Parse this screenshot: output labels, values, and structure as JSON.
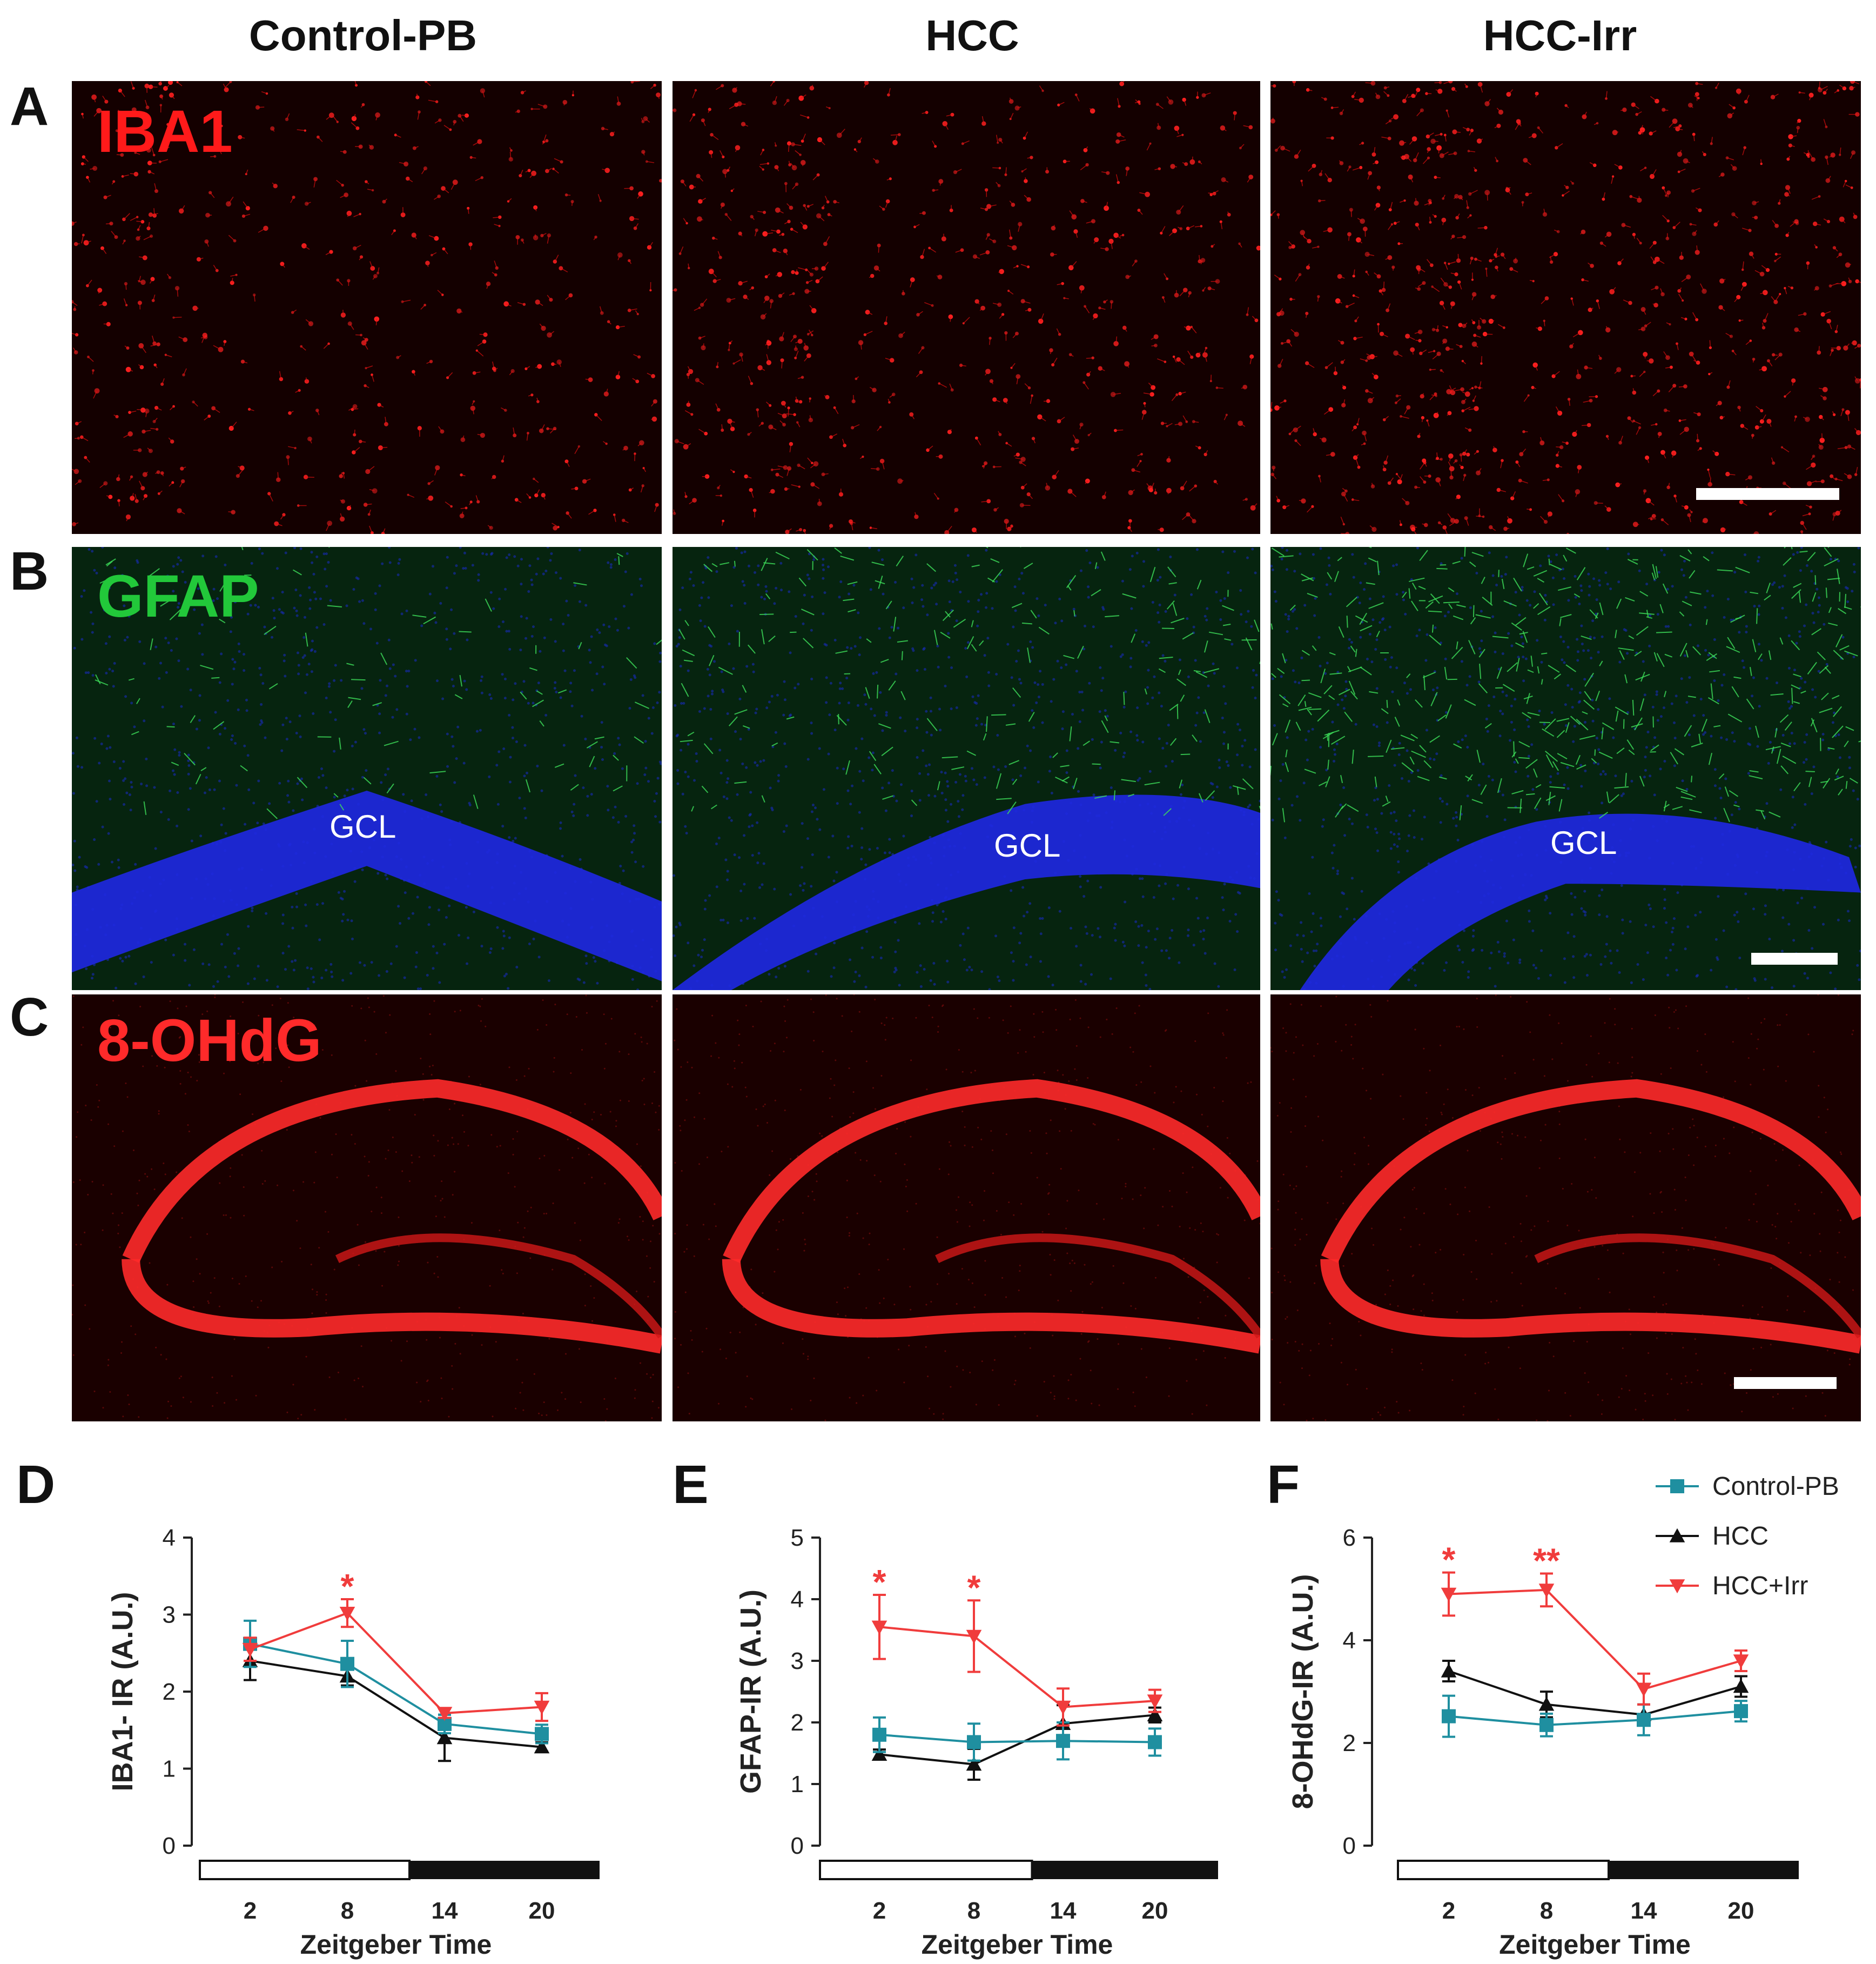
{
  "columns": [
    "Control-PB",
    "HCC",
    "HCC-Irr"
  ],
  "rows": [
    {
      "letter": "A",
      "stain": "IBA1",
      "stain_color": "#ff1a1a"
    },
    {
      "letter": "B",
      "stain": "GFAP",
      "stain_color": "#22c83a",
      "region_label": "GCL"
    },
    {
      "letter": "C",
      "stain": "8-OHdG",
      "stain_color": "#ff2a2a"
    }
  ],
  "legend": {
    "items": [
      {
        "label": "Control-PB",
        "color": "#1f8fa0",
        "marker": "square"
      },
      {
        "label": "HCC",
        "color": "#111111",
        "marker": "triangle-up"
      },
      {
        "label": "HCC+Irr",
        "color": "#f03c3c",
        "marker": "triangle-down"
      }
    ]
  },
  "chart_data": [
    {
      "type": "line",
      "panel": "D",
      "xlabel": "Zeitgeber Time",
      "ylabel": "IBA1- IR (A.U.)",
      "x": [
        2,
        8,
        14,
        20
      ],
      "ylim": [
        0,
        4
      ],
      "yticks": [
        0,
        1,
        2,
        3,
        4
      ],
      "series": [
        {
          "name": "Control-PB",
          "values": [
            2.62,
            2.36,
            1.58,
            1.45
          ],
          "errors": [
            0.3,
            0.3,
            0.12,
            0.12
          ]
        },
        {
          "name": "HCC",
          "values": [
            2.4,
            2.2,
            1.4,
            1.28
          ],
          "errors": [
            0.25,
            0.12,
            0.3,
            0.06
          ]
        },
        {
          "name": "HCC+Irr",
          "values": [
            2.55,
            3.02,
            1.72,
            1.8
          ],
          "errors": [
            0.15,
            0.18,
            0.06,
            0.18
          ]
        }
      ],
      "annotations": [
        {
          "x": 8,
          "text": "*"
        }
      ]
    },
    {
      "type": "line",
      "panel": "E",
      "xlabel": "Zeitgeber Time",
      "ylabel": "GFAP-IR (A.U.)",
      "x": [
        2,
        8,
        14,
        20
      ],
      "ylim": [
        0,
        5
      ],
      "yticks": [
        0,
        1,
        2,
        3,
        4,
        5
      ],
      "series": [
        {
          "name": "Control-PB",
          "values": [
            1.8,
            1.68,
            1.7,
            1.68
          ],
          "errors": [
            0.28,
            0.3,
            0.3,
            0.22
          ]
        },
        {
          "name": "HCC",
          "values": [
            1.48,
            1.32,
            1.98,
            2.12
          ],
          "errors": [
            0.08,
            0.25,
            0.3,
            0.12
          ]
        },
        {
          "name": "HCC+Irr",
          "values": [
            3.55,
            3.4,
            2.25,
            2.35
          ],
          "errors": [
            0.52,
            0.58,
            0.3,
            0.18
          ]
        }
      ],
      "annotations": [
        {
          "x": 2,
          "text": "*"
        },
        {
          "x": 8,
          "text": "*"
        }
      ]
    },
    {
      "type": "line",
      "panel": "F",
      "xlabel": "Zeitgeber Time",
      "ylabel": "8-OHdG-IR (A.U.)",
      "x": [
        2,
        8,
        14,
        20
      ],
      "ylim": [
        0,
        6
      ],
      "yticks": [
        0,
        2,
        4,
        6
      ],
      "series": [
        {
          "name": "Control-PB",
          "values": [
            2.52,
            2.35,
            2.45,
            2.62
          ],
          "errors": [
            0.4,
            0.22,
            0.3,
            0.2
          ]
        },
        {
          "name": "HCC",
          "values": [
            3.4,
            2.75,
            2.55,
            3.1
          ],
          "errors": [
            0.2,
            0.25,
            0.2,
            0.2
          ]
        },
        {
          "name": "HCC+Irr",
          "values": [
            4.9,
            4.98,
            3.05,
            3.6
          ],
          "errors": [
            0.42,
            0.32,
            0.3,
            0.2
          ]
        }
      ],
      "annotations": [
        {
          "x": 2,
          "text": "*"
        },
        {
          "x": 8,
          "text": "**"
        }
      ]
    }
  ]
}
